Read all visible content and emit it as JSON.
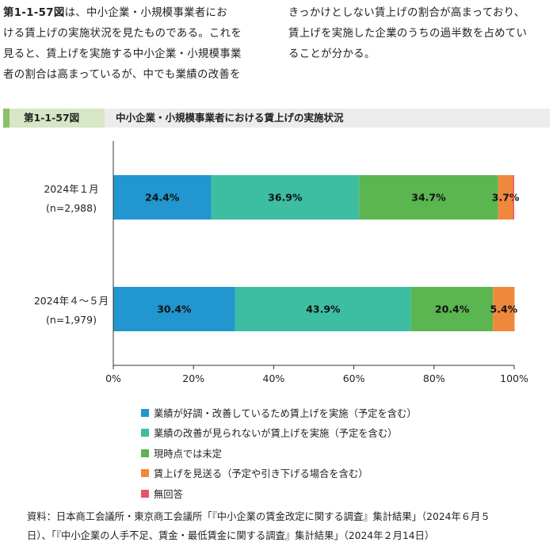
{
  "intro": {
    "left_lines": [
      {
        "bold": "第1-1-57図",
        "text": "は、中小企業・小規模事業者にお"
      },
      {
        "bold": "",
        "text": "ける賃上げの実施状況を見たものである。これを"
      },
      {
        "bold": "",
        "text": "見ると、賃上げを実施する中小企業・小規模事業"
      },
      {
        "bold": "",
        "text": "者の割合は高まっているが、中でも業績の改善を"
      }
    ],
    "right_lines": [
      "きっかけとしない賃上げの割合が高まっており、",
      "賃上げを実施した企業のうちの過半数を占めてい",
      "ることが分かる。"
    ]
  },
  "figure": {
    "number": "第1-1-57図",
    "title": "中小企業・小規模事業者における賃上げの実施状況"
  },
  "chart_data": {
    "type": "bar",
    "orientation": "horizontal",
    "stacked": true,
    "categories": [
      {
        "line1": "2024年１月",
        "line2": "(n=2,988)"
      },
      {
        "line1": "2024年４～５月",
        "line2": "(n=1,979)"
      }
    ],
    "series": [
      {
        "name": "業績が好調・改善しているため賃上げを実施（予定を含む）",
        "color": "#2196cf",
        "values": [
          24.4,
          30.4
        ],
        "labels": [
          "24.4%",
          "30.4%"
        ]
      },
      {
        "name": "業績の改善が見られないが賃上げを実施（予定を含む）",
        "color": "#3dbea2",
        "values": [
          36.9,
          43.9
        ],
        "labels": [
          "36.9%",
          "43.9%"
        ]
      },
      {
        "name": "現時点では未定",
        "color": "#5bb551",
        "values": [
          34.7,
          20.4
        ],
        "labels": [
          "34.7%",
          "20.4%"
        ]
      },
      {
        "name": "賃上げを見送る（予定や引き下げる場合を含む）",
        "color": "#f0883c",
        "values": [
          3.7,
          5.4
        ],
        "labels": [
          "3.7%",
          "5.4%"
        ]
      },
      {
        "name": "無回答",
        "color": "#e8556a",
        "values": [
          0.3,
          0.0
        ],
        "labels": [
          "",
          ""
        ]
      }
    ],
    "x_ticks": [
      "0%",
      "20%",
      "40%",
      "60%",
      "80%",
      "100%"
    ],
    "xlim": [
      0,
      100
    ],
    "grid": false,
    "legend_position": "bottom"
  },
  "source": {
    "lines": [
      "資料：日本商工会議所・東京商工会議所「『中小企業の賃金改定に関する調査』集計結果」（2024年６月５",
      "日）、「『中小企業の人手不足、賃金・最低賃金に関する調査』集計結果」（2024年２月14日）"
    ]
  }
}
